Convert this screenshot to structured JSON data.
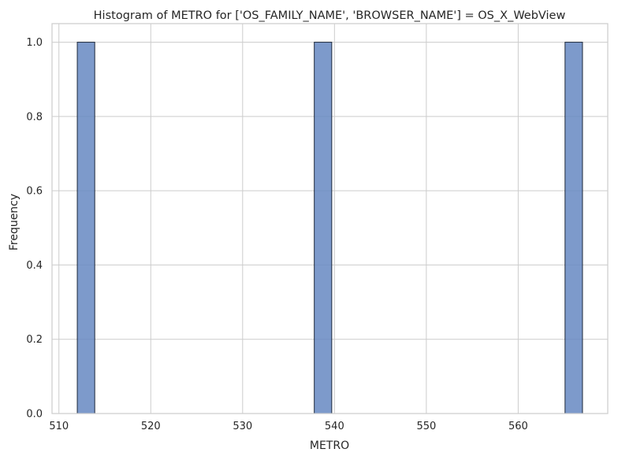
{
  "chart_data": {
    "type": "bar",
    "title": "Histogram of METRO for ['OS_FAMILY_NAME', 'BROWSER_NAME'] = OS_X_WebView",
    "xlabel": "METRO",
    "ylabel": "Frequency",
    "xlim": [
      509.25,
      569.75
    ],
    "ylim": [
      0,
      1.05
    ],
    "xticks": [
      510,
      520,
      530,
      540,
      550,
      560
    ],
    "yticks": [
      0.0,
      0.2,
      0.4,
      0.6,
      0.8,
      1.0
    ],
    "xtick_labels": [
      "510",
      "520",
      "530",
      "540",
      "550",
      "560"
    ],
    "ytick_labels": [
      "0.0",
      "0.2",
      "0.4",
      "0.6",
      "0.8",
      "1.0"
    ],
    "bars": [
      {
        "x_start": 512.0,
        "x_end": 513.9,
        "value": 1
      },
      {
        "x_start": 537.8,
        "x_end": 539.7,
        "value": 1
      },
      {
        "x_start": 565.1,
        "x_end": 567.0,
        "value": 1
      }
    ],
    "grid": true,
    "colors": {
      "bar": "#6688c2",
      "bar_edge": "#1f2a3c",
      "grid": "#cccccc",
      "text": "#262626"
    }
  }
}
